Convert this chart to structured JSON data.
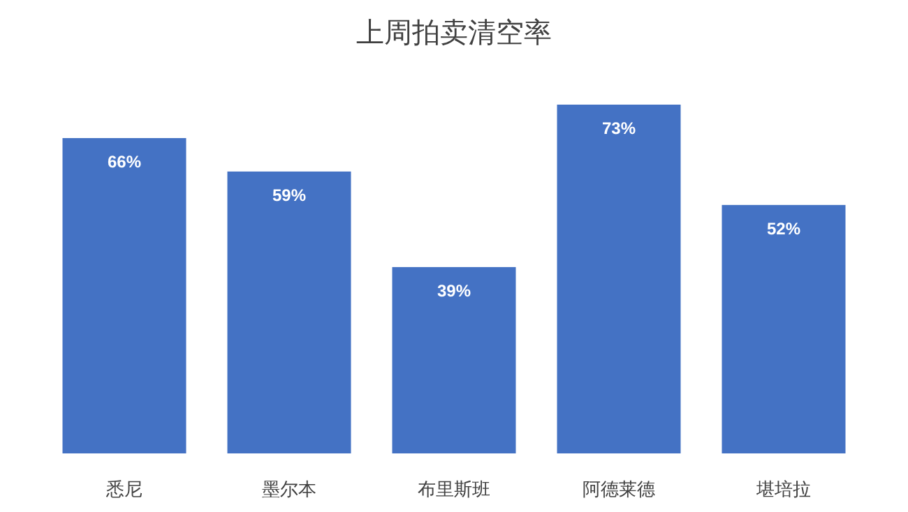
{
  "chart_data": {
    "type": "bar",
    "title": "上周拍卖清空率",
    "categories": [
      "悉尼",
      "墨尔本",
      "布里斯班",
      "阿德莱德",
      "堪培拉"
    ],
    "values": [
      66,
      59,
      39,
      73,
      52
    ],
    "value_labels": [
      "66%",
      "59%",
      "39%",
      "73%",
      "52%"
    ],
    "color": "#4472c4"
  }
}
